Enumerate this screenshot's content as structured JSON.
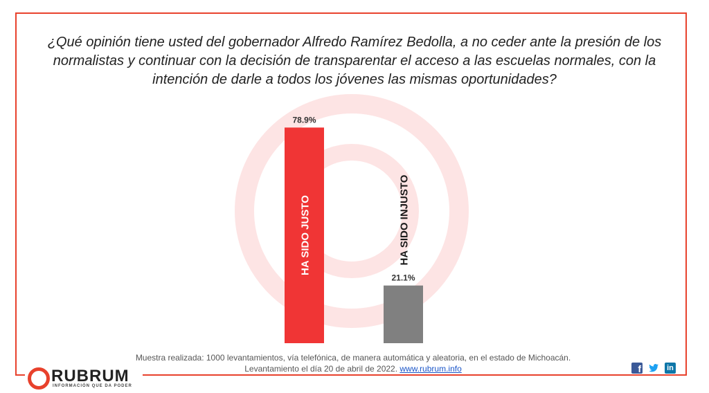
{
  "question": "¿Qué opinión tiene usted del gobernador Alfredo Ramírez Bedolla, a no ceder ante la presión de los normalistas y continuar con la decisión de transparentar el acceso a las escuelas normales, con la intención de darle a todos los jóvenes las mismas oportunidades?",
  "chart_data": {
    "type": "bar",
    "categories": [
      "HA SIDO JUSTO",
      "HA SIDO INJUSTO"
    ],
    "values": [
      78.9,
      21.1
    ],
    "data_labels": [
      "78.9%",
      "21.1%"
    ],
    "colors": [
      "#f03535",
      "#808080"
    ],
    "ylim": [
      0,
      100
    ],
    "grid": false,
    "legend": "none"
  },
  "footer": {
    "line1": "Muestra realizada: 1000 levantamientos, vía telefónica, de manera automática y aleatoria, en el estado de Michoacán.",
    "line2": "Levantamiento el día 20 de abril de 2022.",
    "link": "www.rubrum.info"
  },
  "logo": {
    "name": "RUBRUM",
    "tagline": "INFORMACIÓN QUE DA PODER"
  },
  "social": [
    "facebook-icon",
    "twitter-icon",
    "linkedin-icon"
  ],
  "colors": {
    "accent": "#e8412c"
  }
}
